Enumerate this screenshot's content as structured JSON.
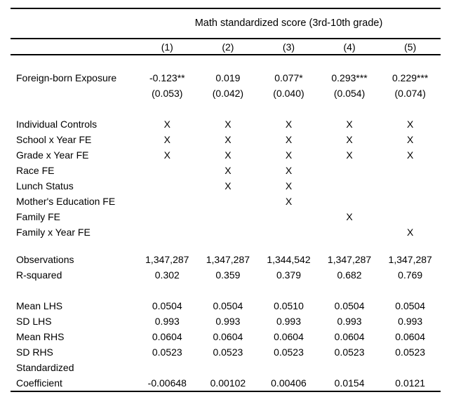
{
  "page": {
    "background": "#ffffff",
    "text_color": "#000000",
    "rule_color": "#000000"
  },
  "table": {
    "title": "Math standardized score (3rd-10th grade)",
    "column_headers": [
      "(1)",
      "(2)",
      "(3)",
      "(4)",
      "(5)"
    ],
    "sections": [
      {
        "name": "coefficients",
        "rows": [
          {
            "label": "Foreign-born Exposure",
            "cells": [
              "-0.123**",
              "0.019",
              "0.077*",
              "0.293***",
              "0.229***"
            ]
          },
          {
            "label": "",
            "cells": [
              "(0.053)",
              "(0.042)",
              "(0.040)",
              "(0.054)",
              "(0.074)"
            ]
          }
        ]
      },
      {
        "name": "controls-and-fixed-effects",
        "rows": [
          {
            "label": "Individual Controls",
            "cells": [
              "X",
              "X",
              "X",
              "X",
              "X"
            ]
          },
          {
            "label": "School x Year FE",
            "cells": [
              "X",
              "X",
              "X",
              "X",
              "X"
            ]
          },
          {
            "label": "Grade x Year FE",
            "cells": [
              "X",
              "X",
              "X",
              "X",
              "X"
            ]
          },
          {
            "label": "Race FE",
            "cells": [
              "",
              "X",
              "X",
              "",
              ""
            ]
          },
          {
            "label": "Lunch Status",
            "cells": [
              "",
              "X",
              "X",
              "",
              ""
            ]
          },
          {
            "label": "Mother's Education FE",
            "cells": [
              "",
              "",
              "X",
              "",
              ""
            ]
          },
          {
            "label": "Family FE",
            "cells": [
              "",
              "",
              "",
              "X",
              ""
            ]
          },
          {
            "label": "Family x Year FE",
            "cells": [
              "",
              "",
              "",
              "",
              "X"
            ]
          }
        ]
      },
      {
        "name": "model-fit",
        "rows": [
          {
            "label": "Observations",
            "cells": [
              "1,347,287",
              "1,347,287",
              "1,344,542",
              "1,347,287",
              "1,347,287"
            ]
          },
          {
            "label": "R-squared",
            "cells": [
              "0.302",
              "0.359",
              "0.379",
              "0.682",
              "0.769"
            ]
          }
        ]
      },
      {
        "name": "summary-statistics",
        "rows": [
          {
            "label": "Mean LHS",
            "cells": [
              "0.0504",
              "0.0504",
              "0.0510",
              "0.0504",
              "0.0504"
            ]
          },
          {
            "label": "SD LHS",
            "cells": [
              "0.993",
              "0.993",
              "0.993",
              "0.993",
              "0.993"
            ]
          },
          {
            "label": "Mean RHS",
            "cells": [
              "0.0604",
              "0.0604",
              "0.0604",
              "0.0604",
              "0.0604"
            ]
          },
          {
            "label": "SD RHS",
            "cells": [
              "0.0523",
              "0.0523",
              "0.0523",
              "0.0523",
              "0.0523"
            ]
          },
          {
            "label": "Standardized",
            "cells": [
              "",
              "",
              "",
              "",
              ""
            ]
          },
          {
            "label": "Coefficient",
            "cells": [
              "-0.00648",
              "0.00102",
              "0.00406",
              "0.0154",
              "0.0121"
            ]
          }
        ]
      }
    ]
  }
}
